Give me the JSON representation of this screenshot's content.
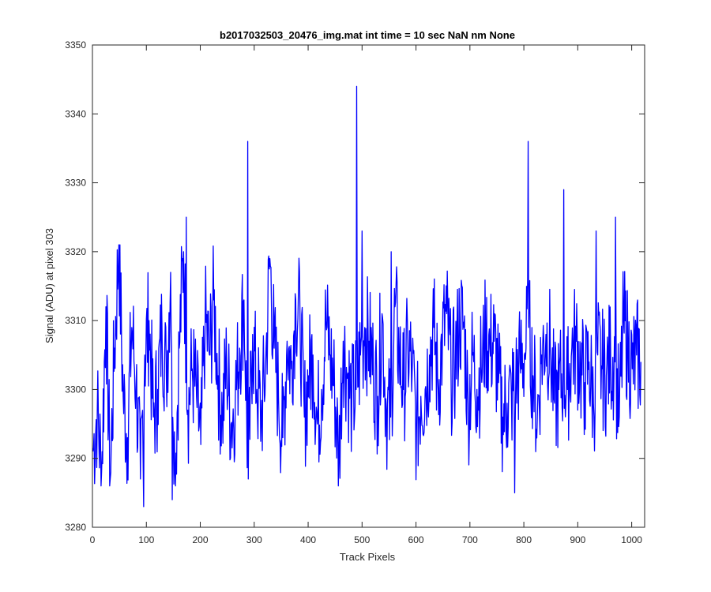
{
  "chart_data": {
    "type": "line",
    "title": "b2017032503_20476_img.mat int time = 10 sec  NaN nm None",
    "xlabel": "Track Pixels",
    "ylabel": "Signal (ADU) at pixel 303",
    "xlim": [
      0,
      1024
    ],
    "ylim": [
      3280,
      3350
    ],
    "xticks": [
      0,
      100,
      200,
      300,
      400,
      500,
      600,
      700,
      800,
      900,
      1000
    ],
    "yticks": [
      3280,
      3290,
      3300,
      3310,
      3320,
      3330,
      3340,
      3350
    ],
    "grid": false,
    "colors": {
      "line": "#0000ff",
      "axes": "#262626",
      "background": "#ffffff"
    },
    "series": [
      {
        "x_start": 1,
        "x_step": 8,
        "values": [
          3291,
          3297,
          3288,
          3312,
          3287,
          3306,
          3321,
          3299,
          3293,
          3309,
          3301,
          3287,
          3305,
          3310,
          3296,
          3300,
          3309,
          3302,
          3317,
          3288,
          3306,
          3320,
          3297,
          3303,
          3299,
          3292,
          3310,
          3305,
          3313,
          3302,
          3296,
          3304,
          3295,
          3299,
          3306,
          3313,
          3287,
          3308,
          3300,
          3296,
          3303,
          3319,
          3306,
          3299,
          3293,
          3307,
          3303,
          3313,
          3310,
          3296,
          3302,
          3305,
          3295,
          3300,
          3310,
          3305,
          3300,
          3290,
          3307,
          3302,
          3298,
          3300,
          3305,
          3309,
          3307,
          3303,
          3299,
          3311,
          3297,
          3296,
          3312,
          3305,
          3300,
          3306,
          3303,
          3294,
          3299,
          3300,
          3305,
          3309,
          3300,
          3307,
          3311,
          3302,
          3304,
          3310,
          3309,
          3297,
          3305,
          3300,
          3303,
          3308,
          3306,
          3307,
          3301,
          3296,
          3298,
          3299,
          3301,
          3304,
          3305,
          3309,
          3302,
          3296,
          3305,
          3308,
          3306,
          3298,
          3300,
          3303,
          3300,
          3306,
          3307,
          3303,
          3301,
          3304,
          3298,
          3305,
          3303,
          3302,
          3305,
          3304,
          3296,
          3310,
          3306,
          3303,
          3305,
          3304
        ]
      }
    ],
    "spikes": [
      {
        "x": 95,
        "y": 3283
      },
      {
        "x": 148,
        "y": 3284
      },
      {
        "x": 174,
        "y": 3325
      },
      {
        "x": 288,
        "y": 3336
      },
      {
        "x": 490,
        "y": 3344
      },
      {
        "x": 500,
        "y": 3323
      },
      {
        "x": 554,
        "y": 3320
      },
      {
        "x": 783,
        "y": 3285
      },
      {
        "x": 808,
        "y": 3336
      },
      {
        "x": 874,
        "y": 3329
      },
      {
        "x": 934,
        "y": 3323
      },
      {
        "x": 970,
        "y": 3325
      }
    ]
  }
}
